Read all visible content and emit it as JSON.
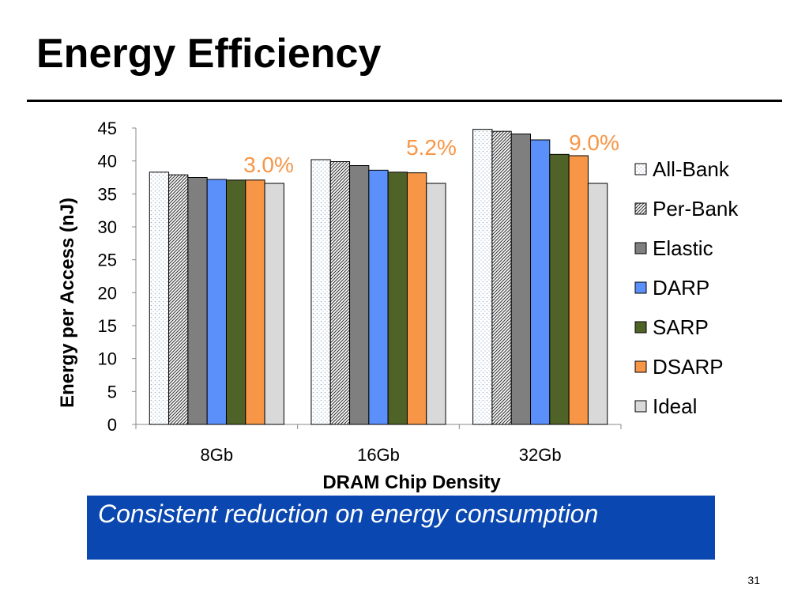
{
  "slide": {
    "title": "Energy Efficiency",
    "callout": "Consistent reduction on energy consumption",
    "page_number": "31"
  },
  "chart_data": {
    "type": "bar",
    "categories": [
      "8Gb",
      "16Gb",
      "32Gb"
    ],
    "xlabel": "DRAM Chip Density",
    "ylabel": "Energy per Access (nJ)",
    "ylim": [
      0,
      45
    ],
    "yticks": [
      0,
      5,
      10,
      15,
      20,
      25,
      30,
      35,
      40,
      45
    ],
    "grid": false,
    "legend_position": "right",
    "series": [
      {
        "name": "All-Bank",
        "values": [
          38.3,
          40.2,
          44.8
        ],
        "color": "#ffffff",
        "pattern": "dots"
      },
      {
        "name": "Per-Bank",
        "values": [
          37.9,
          39.9,
          44.5
        ],
        "color": "#ffffff",
        "pattern": "diagonal-hatch"
      },
      {
        "name": "Elastic",
        "values": [
          37.5,
          39.3,
          44.1
        ],
        "color": "#7f7f7f"
      },
      {
        "name": "DARP",
        "values": [
          37.2,
          38.6,
          43.2
        ],
        "color": "#5b8ff9"
      },
      {
        "name": "SARP",
        "values": [
          37.1,
          38.3,
          41.0
        ],
        "color": "#4f6228"
      },
      {
        "name": "DSARP",
        "values": [
          37.1,
          38.2,
          40.8
        ],
        "color": "#f79646"
      },
      {
        "name": "Ideal",
        "values": [
          36.6,
          36.6,
          36.6
        ],
        "color": "#d9d9d9"
      }
    ],
    "annotations": [
      {
        "text": "3.0%",
        "category": "8Gb",
        "color": "#f79646"
      },
      {
        "text": "5.2%",
        "category": "16Gb",
        "color": "#f79646"
      },
      {
        "text": "9.0%",
        "category": "32Gb",
        "color": "#f79646"
      }
    ]
  }
}
